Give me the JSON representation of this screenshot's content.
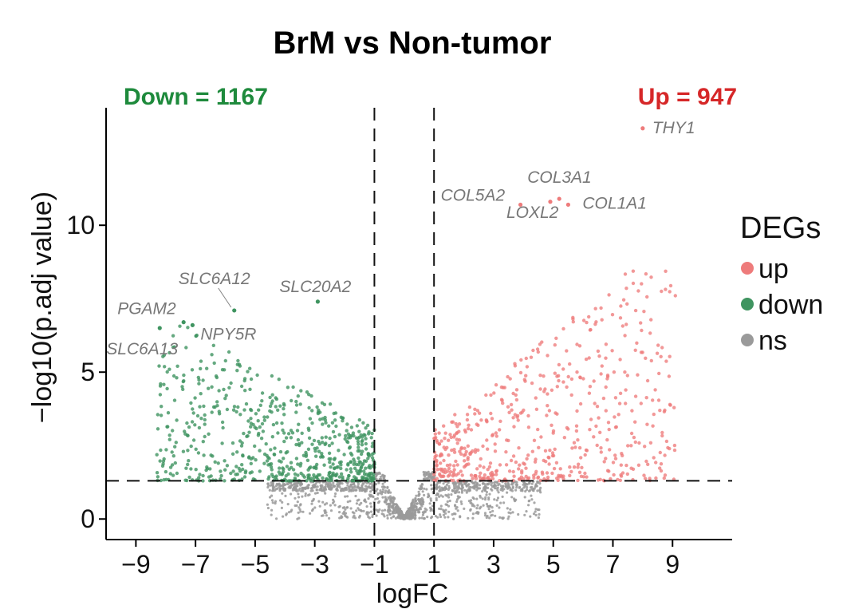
{
  "chart_data": {
    "type": "scatter",
    "title": "BrM vs Non-tumor",
    "xlabel": "logFC",
    "ylabel": "−log10(p.adj value)",
    "xlim": [
      -10,
      11
    ],
    "ylim": [
      -0.7,
      14
    ],
    "x_ticks": [
      -9,
      -7,
      -5,
      -3,
      -1,
      1,
      3,
      5,
      7,
      9
    ],
    "x_tick_labels": [
      "−9",
      "−7",
      "−5",
      "−3",
      "−1",
      "1",
      "3",
      "5",
      "7",
      "9"
    ],
    "y_ticks": [
      0,
      5,
      10
    ],
    "y_tick_labels": [
      "0",
      "5",
      "10"
    ],
    "grid": false,
    "thresholds": {
      "logfc": [
        -1,
        1
      ],
      "neg_log10_padj": 1.3
    },
    "counts": {
      "down_label": "Down = 1167",
      "up_label": "Up = 947"
    },
    "legend": {
      "title": "DEGs",
      "position": "right",
      "entries": [
        {
          "label": "up",
          "color": "#ee7b7b"
        },
        {
          "label": "down",
          "color": "#3f9460"
        },
        {
          "label": "ns",
          "color": "#9a9a9a"
        }
      ]
    },
    "colors": {
      "up": "#ee7b7b",
      "down": "#3f9460",
      "ns": "#9a9a9a",
      "up_text": "#d62728",
      "down_text": "#1e8a3c",
      "gene_label": "#777777"
    },
    "labeled_genes": [
      {
        "gene": "THY1",
        "x": 8.0,
        "y": 13.3
      },
      {
        "gene": "COL3A1",
        "x": 5.2,
        "y": 10.9
      },
      {
        "gene": "COL5A2",
        "x": 3.9,
        "y": 10.7
      },
      {
        "gene": "COL1A1",
        "x": 5.5,
        "y": 10.7
      },
      {
        "gene": "LOXL2",
        "x": 4.9,
        "y": 10.8
      },
      {
        "gene": "SLC6A12",
        "x": -5.7,
        "y": 7.1
      },
      {
        "gene": "SLC20A2",
        "x": -2.9,
        "y": 7.4
      },
      {
        "gene": "PGAM2",
        "x": -7.4,
        "y": 6.7
      },
      {
        "gene": "NPY5R",
        "x": -7.1,
        "y": 6.6
      },
      {
        "gene": "SLC6A13",
        "x": -8.2,
        "y": 6.5
      }
    ],
    "series": [
      {
        "name": "up",
        "n": 947
      },
      {
        "name": "down",
        "n": 1167
      },
      {
        "name": "ns",
        "n": 15000
      }
    ]
  }
}
